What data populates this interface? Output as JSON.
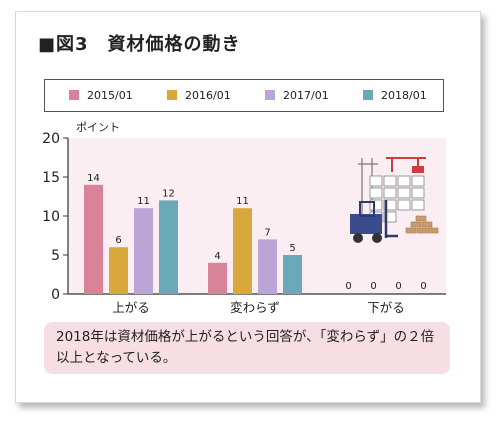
{
  "figure": {
    "title": "■図3　資材価格の動き",
    "note": "2018年は資材価格が上がるという回答が、「変わらず」の２倍以上となっている。"
  },
  "chart_data": {
    "type": "bar",
    "categories": [
      "上がる",
      "変わらず",
      "下がる"
    ],
    "series": [
      {
        "name": "2015/01",
        "values": [
          14,
          4,
          0
        ],
        "color": "#d9839a"
      },
      {
        "name": "2016/01",
        "values": [
          6,
          11,
          0
        ],
        "color": "#d9a83c"
      },
      {
        "name": "2017/01",
        "values": [
          11,
          7,
          0
        ],
        "color": "#bba4d6"
      },
      {
        "name": "2018/01",
        "values": [
          12,
          5,
          0
        ],
        "color": "#6aaab8"
      }
    ],
    "ylabel": "ポイント",
    "ylim": [
      0,
      20
    ],
    "yticks": [
      0,
      5,
      10,
      15,
      20
    ],
    "legend": "top",
    "grid": false,
    "plot_background": "#fbeef2"
  }
}
